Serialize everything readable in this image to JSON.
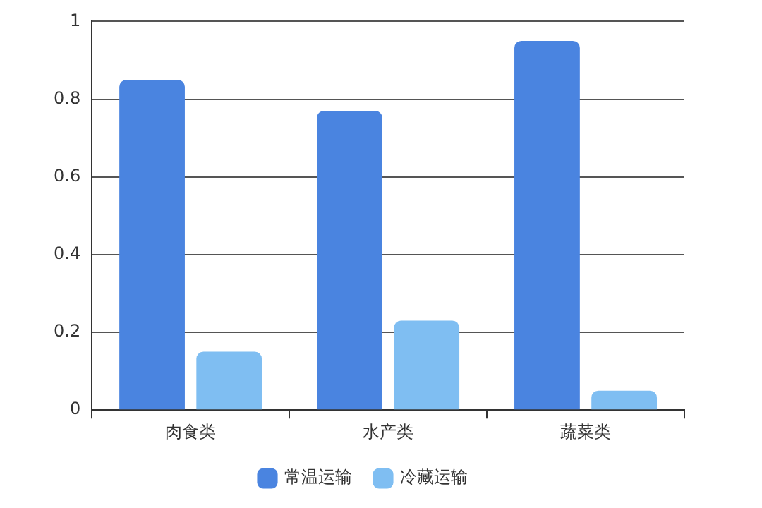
{
  "chart_data": {
    "type": "bar",
    "categories": [
      "肉食类",
      "水产类",
      "蔬菜类"
    ],
    "series": [
      {
        "name": "常温运输",
        "color": "#4a84e0",
        "values": [
          0.85,
          0.77,
          0.95
        ]
      },
      {
        "name": "冷藏运输",
        "color": "#7fbef2",
        "values": [
          0.15,
          0.23,
          0.05
        ]
      }
    ],
    "ylim": [
      0,
      1
    ],
    "yticks": [
      0,
      0.2,
      0.4,
      0.6,
      0.8,
      1
    ],
    "grid": "y",
    "legend": "bottom"
  }
}
